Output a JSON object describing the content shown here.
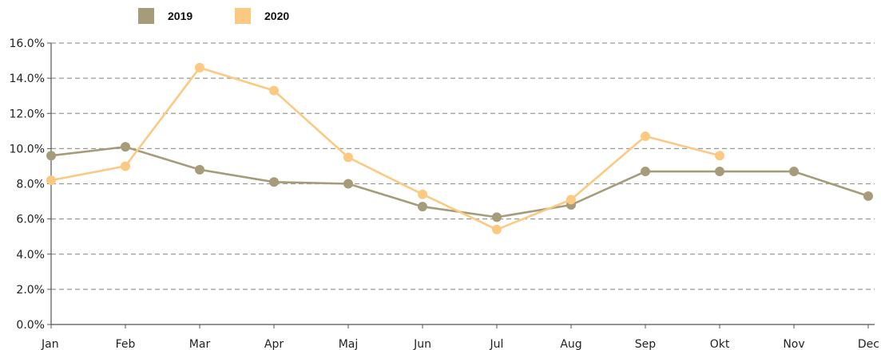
{
  "chart_data": {
    "type": "line",
    "title": "",
    "xlabel": "",
    "ylabel": "",
    "categories": [
      "Jan",
      "Feb",
      "Mar",
      "Apr",
      "Maj",
      "Jun",
      "Jul",
      "Aug",
      "Sep",
      "Okt",
      "Nov",
      "Dec"
    ],
    "ylim": [
      0,
      16
    ],
    "yticks": [
      0,
      2,
      4,
      6,
      8,
      10,
      12,
      14,
      16
    ],
    "ytick_labels": [
      "0.0%",
      "2.0%",
      "4.0%",
      "6.0%",
      "8.0%",
      "10.0%",
      "12.0%",
      "14.0%",
      "16.0%"
    ],
    "grid": true,
    "legend_position": "top-left",
    "series": [
      {
        "name": "2019",
        "color": "#a69c7a",
        "values": [
          9.6,
          10.1,
          8.8,
          8.1,
          8.0,
          6.7,
          6.1,
          6.8,
          8.7,
          8.7,
          8.7,
          7.3
        ]
      },
      {
        "name": "2020",
        "color": "#fcc983",
        "values": [
          8.2,
          9.0,
          14.6,
          13.3,
          9.5,
          7.4,
          5.4,
          7.1,
          10.7,
          9.6,
          null,
          null
        ]
      }
    ]
  }
}
